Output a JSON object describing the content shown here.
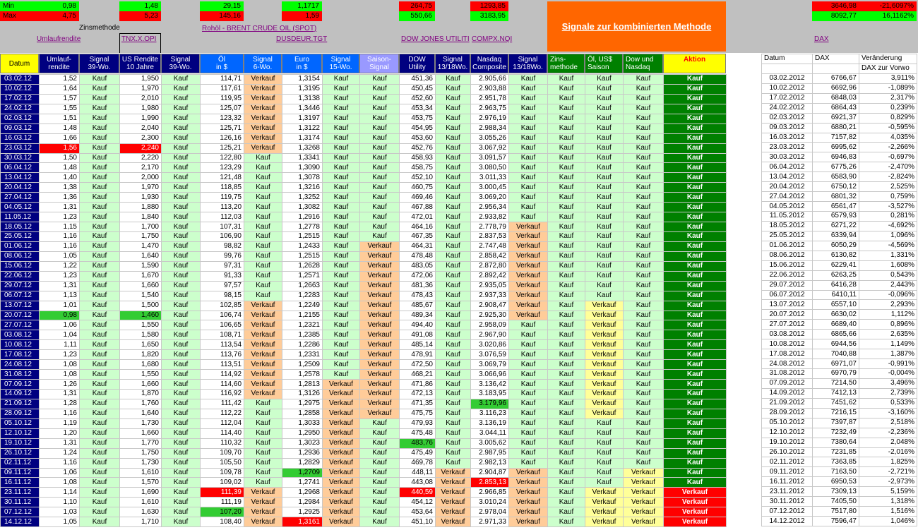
{
  "minmax": {
    "min_label": "Min",
    "max_label": "Max",
    "min": [
      "0,98",
      "1,48",
      "29,15",
      "1,1717",
      "264,75",
      "1293,85",
      "3646,98",
      "-21,6097%"
    ],
    "max": [
      "4,75",
      "5,23",
      "145,16",
      "1,59",
      "550,66",
      "3183,95",
      "8092,77",
      "16,1162%"
    ]
  },
  "zinsmethode": "Zinsmethode",
  "links": {
    "umlaufrendite": "Umlaufrendite",
    "tnx": "TNX.X.OPI",
    "brent": "Rohöl - BRENT CRUDE OIL (SPOT)",
    "dusdeur": "DUSDEUR.TGT",
    "dow": "DOW JONES UTILITI",
    "compx": "COMPX.NQI",
    "dax": "DAX"
  },
  "signal_title": "Signale zur kombinierten Methode",
  "headers": {
    "datum": "Datum",
    "umlauf": [
      "Umlauf-",
      "rendite"
    ],
    "sig39a": [
      "Signal",
      "39-Wo."
    ],
    "usrendite": [
      "US Rendite",
      "10 Jahre"
    ],
    "sig39b": [
      "Signal",
      "39-Wo."
    ],
    "oel": [
      "Öl",
      "in $"
    ],
    "sig6": [
      "Signal",
      "6-Wo."
    ],
    "euro": [
      "Euro",
      "in $"
    ],
    "sig15": [
      "Signal",
      "15-Wo."
    ],
    "saison": [
      "Saison-",
      "Signal"
    ],
    "dow": [
      "DOW",
      "Utility"
    ],
    "sig1318a": [
      "Signal",
      "13/18Wo."
    ],
    "nasdaq": [
      "Nasdaq",
      "Composite"
    ],
    "sig1318b": [
      "Signal",
      "13/18Wo."
    ],
    "zins": [
      "Zins-",
      "methode"
    ],
    "oelus": [
      "Öl, US$",
      "Saison"
    ],
    "downdq": [
      "Dow und",
      "Nasdaq"
    ],
    "aktion": "Aktion"
  },
  "dax_headers": {
    "datum": "Datum",
    "dax": "DAX",
    "veraenderung": "Veränderung",
    "zurvorwoche": "DAX zur Vorwo"
  },
  "colors": {
    "navy_header": "#000080",
    "blue_header": "#0066ff",
    "purple_header": "#9999ff",
    "green_header": "#008000",
    "yellow_header": "#ffff00",
    "signal_bg": "#ccffcc",
    "verkauf_bg": "#ffcc99",
    "verkauf_yellow_bg": "#ffff99",
    "kauf_action": "#008000",
    "verkauf_action": "#ff0000",
    "title_orange": "#ff6600"
  },
  "rows": [
    [
      "03.02.12",
      "1,52",
      "Kauf",
      "1,950",
      "Kauf",
      "114,71",
      "Verkauf",
      "1,3154",
      "Kauf",
      "Kauf",
      "451,36",
      "Kauf",
      "2.905,66",
      "Kauf",
      "Kauf",
      "Kauf",
      "Kauf",
      "Kauf"
    ],
    [
      "10.02.12",
      "1,64",
      "Kauf",
      "1,970",
      "Kauf",
      "117,61",
      "Verkauf",
      "1,3195",
      "Kauf",
      "Kauf",
      "450,45",
      "Kauf",
      "2.903,88",
      "Kauf",
      "Kauf",
      "Kauf",
      "Kauf",
      "Kauf"
    ],
    [
      "17.02.12",
      "1,57",
      "Kauf",
      "2,010",
      "Kauf",
      "119,95",
      "Verkauf",
      "1,3138",
      "Kauf",
      "Kauf",
      "452,60",
      "Kauf",
      "2.951,78",
      "Kauf",
      "Kauf",
      "Kauf",
      "Kauf",
      "Kauf"
    ],
    [
      "24.02.12",
      "1,55",
      "Kauf",
      "1,980",
      "Kauf",
      "125,07",
      "Verkauf",
      "1,3446",
      "Kauf",
      "Kauf",
      "453,34",
      "Kauf",
      "2.963,75",
      "Kauf",
      "Kauf",
      "Kauf",
      "Kauf",
      "Kauf"
    ],
    [
      "02.03.12",
      "1,51",
      "Kauf",
      "1,990",
      "Kauf",
      "123,32",
      "Verkauf",
      "1,3197",
      "Kauf",
      "Kauf",
      "453,75",
      "Kauf",
      "2.976,19",
      "Kauf",
      "Kauf",
      "Kauf",
      "Kauf",
      "Kauf"
    ],
    [
      "09.03.12",
      "1,48",
      "Kauf",
      "2,040",
      "Kauf",
      "125,71",
      "Verkauf",
      "1,3122",
      "Kauf",
      "Kauf",
      "454,95",
      "Kauf",
      "2.988,34",
      "Kauf",
      "Kauf",
      "Kauf",
      "Kauf",
      "Kauf"
    ],
    [
      "16.03.12",
      "1,66",
      "Kauf",
      "2,300",
      "Kauf",
      "126,16",
      "Verkauf",
      "1,3174",
      "Kauf",
      "Kauf",
      "453,60",
      "Kauf",
      "3.055,26",
      "Kauf",
      "Kauf",
      "Kauf",
      "Kauf",
      "Kauf"
    ],
    [
      "23.03.12",
      "1,56",
      "Kauf",
      "2,240",
      "Kauf",
      "125,21",
      "Verkauf",
      "1,3268",
      "Kauf",
      "Kauf",
      "452,76",
      "Kauf",
      "3.067,92",
      "Kauf",
      "Kauf",
      "Kauf",
      "Kauf",
      "Kauf"
    ],
    [
      "30.03.12",
      "1,50",
      "Kauf",
      "2,220",
      "Kauf",
      "122,80",
      "Kauf",
      "1,3341",
      "Kauf",
      "Kauf",
      "458,93",
      "Kauf",
      "3.091,57",
      "Kauf",
      "Kauf",
      "Kauf",
      "Kauf",
      "Kauf"
    ],
    [
      "06.04.12",
      "1,48",
      "Kauf",
      "2,170",
      "Kauf",
      "123,29",
      "Kauf",
      "1,3090",
      "Kauf",
      "Kauf",
      "458,75",
      "Kauf",
      "3.080,50",
      "Kauf",
      "Kauf",
      "Kauf",
      "Kauf",
      "Kauf"
    ],
    [
      "13.04.12",
      "1,40",
      "Kauf",
      "2,000",
      "Kauf",
      "121,48",
      "Kauf",
      "1,3078",
      "Kauf",
      "Kauf",
      "452,10",
      "Kauf",
      "3.011,33",
      "Kauf",
      "Kauf",
      "Kauf",
      "Kauf",
      "Kauf"
    ],
    [
      "20.04.12",
      "1,38",
      "Kauf",
      "1,970",
      "Kauf",
      "118,85",
      "Kauf",
      "1,3216",
      "Kauf",
      "Kauf",
      "460,75",
      "Kauf",
      "3.000,45",
      "Kauf",
      "Kauf",
      "Kauf",
      "Kauf",
      "Kauf"
    ],
    [
      "27.04.12",
      "1,36",
      "Kauf",
      "1,930",
      "Kauf",
      "119,75",
      "Kauf",
      "1,3252",
      "Kauf",
      "Kauf",
      "469,46",
      "Kauf",
      "3.069,20",
      "Kauf",
      "Kauf",
      "Kauf",
      "Kauf",
      "Kauf"
    ],
    [
      "04.05.12",
      "1,31",
      "Kauf",
      "1,880",
      "Kauf",
      "113,20",
      "Kauf",
      "1,3082",
      "Kauf",
      "Kauf",
      "467,88",
      "Kauf",
      "2.956,34",
      "Kauf",
      "Kauf",
      "Kauf",
      "Kauf",
      "Kauf"
    ],
    [
      "11.05.12",
      "1,23",
      "Kauf",
      "1,840",
      "Kauf",
      "112,03",
      "Kauf",
      "1,2916",
      "Kauf",
      "Kauf",
      "472,01",
      "Kauf",
      "2.933,82",
      "Kauf",
      "Kauf",
      "Kauf",
      "Kauf",
      "Kauf"
    ],
    [
      "18.05.12",
      "1,15",
      "Kauf",
      "1,700",
      "Kauf",
      "107,31",
      "Kauf",
      "1,2778",
      "Kauf",
      "Kauf",
      "464,16",
      "Kauf",
      "2.778,79",
      "Verkauf",
      "Kauf",
      "Kauf",
      "Kauf",
      "Kauf"
    ],
    [
      "25.05.12",
      "1,16",
      "Kauf",
      "1,750",
      "Kauf",
      "106,90",
      "Kauf",
      "1,2515",
      "Kauf",
      "Kauf",
      "467,35",
      "Kauf",
      "2.837,53",
      "Verkauf",
      "Kauf",
      "Kauf",
      "Kauf",
      "Kauf"
    ],
    [
      "01.06.12",
      "1,16",
      "Kauf",
      "1,470",
      "Kauf",
      "98,82",
      "Kauf",
      "1,2433",
      "Kauf",
      "Verkauf",
      "464,31",
      "Kauf",
      "2.747,48",
      "Verkauf",
      "Kauf",
      "Kauf",
      "Kauf",
      "Kauf"
    ],
    [
      "08.06.12",
      "1,05",
      "Kauf",
      "1,640",
      "Kauf",
      "99,76",
      "Kauf",
      "1,2515",
      "Kauf",
      "Verkauf",
      "478,48",
      "Kauf",
      "2.858,42",
      "Verkauf",
      "Kauf",
      "Kauf",
      "Kauf",
      "Kauf"
    ],
    [
      "15.06.12",
      "1,22",
      "Kauf",
      "1,590",
      "Kauf",
      "97,31",
      "Kauf",
      "1,2628",
      "Kauf",
      "Verkauf",
      "483,05",
      "Kauf",
      "2.872,80",
      "Verkauf",
      "Kauf",
      "Kauf",
      "Kauf",
      "Kauf"
    ],
    [
      "22.06.12",
      "1,23",
      "Kauf",
      "1,670",
      "Kauf",
      "91,33",
      "Kauf",
      "1,2571",
      "Kauf",
      "Verkauf",
      "472,06",
      "Kauf",
      "2.892,42",
      "Verkauf",
      "Kauf",
      "Kauf",
      "Kauf",
      "Kauf"
    ],
    [
      "29.07.12",
      "1,31",
      "Kauf",
      "1,660",
      "Kauf",
      "97,57",
      "Kauf",
      "1,2663",
      "Kauf",
      "Verkauf",
      "481,36",
      "Kauf",
      "2.935,05",
      "Verkauf",
      "Kauf",
      "Kauf",
      "Kauf",
      "Kauf"
    ],
    [
      "06.07.12",
      "1,13",
      "Kauf",
      "1,540",
      "Kauf",
      "98,15",
      "Kauf",
      "1,2283",
      "Kauf",
      "Verkauf",
      "478,43",
      "Kauf",
      "2.937,33",
      "Verkauf",
      "Kauf",
      "Kauf",
      "Kauf",
      "Kauf"
    ],
    [
      "13.07.12",
      "1,01",
      "Kauf",
      "1,500",
      "Kauf",
      "102,85",
      "Verkauf",
      "1,2249",
      "Kauf",
      "Verkauf",
      "485,67",
      "Kauf",
      "2.908,47",
      "Verkauf",
      "Kauf",
      "Verkauf",
      "Kauf",
      "Kauf"
    ],
    [
      "20.07.12",
      "0,98",
      "Kauf",
      "1,460",
      "Kauf",
      "106,74",
      "Verkauf",
      "1,2155",
      "Kauf",
      "Verkauf",
      "489,34",
      "Kauf",
      "2.925,30",
      "Verkauf",
      "Kauf",
      "Verkauf",
      "Kauf",
      "Kauf"
    ],
    [
      "27.07.12",
      "1,06",
      "Kauf",
      "1,550",
      "Kauf",
      "106,65",
      "Verkauf",
      "1,2321",
      "Kauf",
      "Verkauf",
      "494,40",
      "Kauf",
      "2.958,09",
      "Kauf",
      "Kauf",
      "Verkauf",
      "Kauf",
      "Kauf"
    ],
    [
      "03.08.12",
      "1,04",
      "Kauf",
      "1,580",
      "Kauf",
      "108,71",
      "Verkauf",
      "1,2385",
      "Kauf",
      "Verkauf",
      "491,08",
      "Kauf",
      "2.967,90",
      "Kauf",
      "Kauf",
      "Verkauf",
      "Kauf",
      "Kauf"
    ],
    [
      "10.08.12",
      "1,11",
      "Kauf",
      "1,650",
      "Kauf",
      "113,54",
      "Verkauf",
      "1,2286",
      "Kauf",
      "Verkauf",
      "485,14",
      "Kauf",
      "3.020,86",
      "Kauf",
      "Kauf",
      "Verkauf",
      "Kauf",
      "Kauf"
    ],
    [
      "17.08.12",
      "1,23",
      "Kauf",
      "1,820",
      "Kauf",
      "113,76",
      "Verkauf",
      "1,2331",
      "Kauf",
      "Verkauf",
      "478,91",
      "Kauf",
      "3.076,59",
      "Kauf",
      "Kauf",
      "Verkauf",
      "Kauf",
      "Kauf"
    ],
    [
      "24.08.12",
      "1,08",
      "Kauf",
      "1,680",
      "Kauf",
      "113,51",
      "Verkauf",
      "1,2509",
      "Kauf",
      "Verkauf",
      "472,50",
      "Kauf",
      "3.069,79",
      "Kauf",
      "Kauf",
      "Verkauf",
      "Kauf",
      "Kauf"
    ],
    [
      "31.08.12",
      "1,08",
      "Kauf",
      "1,550",
      "Kauf",
      "114,92",
      "Verkauf",
      "1,2578",
      "Kauf",
      "Verkauf",
      "468,21",
      "Kauf",
      "3.066,96",
      "Kauf",
      "Kauf",
      "Verkauf",
      "Kauf",
      "Kauf"
    ],
    [
      "07.09.12",
      "1,26",
      "Kauf",
      "1,660",
      "Kauf",
      "114,60",
      "Verkauf",
      "1,2813",
      "Verkauf",
      "Verkauf",
      "471,86",
      "Kauf",
      "3.136,42",
      "Kauf",
      "Kauf",
      "Verkauf",
      "Kauf",
      "Kauf"
    ],
    [
      "14.09.12",
      "1,31",
      "Kauf",
      "1,870",
      "Kauf",
      "116,92",
      "Verkauf",
      "1,3126",
      "Verkauf",
      "Verkauf",
      "472,13",
      "Kauf",
      "3.183,95",
      "Kauf",
      "Kauf",
      "Verkauf",
      "Kauf",
      "Kauf"
    ],
    [
      "21.09.12",
      "1,28",
      "Kauf",
      "1,760",
      "Kauf",
      "111,42",
      "Kauf",
      "1,2975",
      "Verkauf",
      "Verkauf",
      "471,35",
      "Kauf",
      "3.179,96",
      "Kauf",
      "Kauf",
      "Verkauf",
      "Kauf",
      "Kauf"
    ],
    [
      "28.09.12",
      "1,16",
      "Kauf",
      "1,640",
      "Kauf",
      "112,22",
      "Kauf",
      "1,2858",
      "Verkauf",
      "Verkauf",
      "475,75",
      "Kauf",
      "3.116,23",
      "Kauf",
      "Kauf",
      "Verkauf",
      "Kauf",
      "Kauf"
    ],
    [
      "05.10.12",
      "1,19",
      "Kauf",
      "1,730",
      "Kauf",
      "112,04",
      "Kauf",
      "1,3033",
      "Verkauf",
      "Kauf",
      "479,93",
      "Kauf",
      "3.136,19",
      "Kauf",
      "Kauf",
      "Kauf",
      "Kauf",
      "Kauf"
    ],
    [
      "12.10.12",
      "1,20",
      "Kauf",
      "1,660",
      "Kauf",
      "114,40",
      "Kauf",
      "1,2950",
      "Verkauf",
      "Kauf",
      "475,48",
      "Kauf",
      "3.044,11",
      "Kauf",
      "Kauf",
      "Kauf",
      "Kauf",
      "Kauf"
    ],
    [
      "19.10.12",
      "1,31",
      "Kauf",
      "1,770",
      "Kauf",
      "110,32",
      "Kauf",
      "1,3023",
      "Verkauf",
      "Kauf",
      "483,76",
      "Kauf",
      "3.005,62",
      "Kauf",
      "Kauf",
      "Kauf",
      "Kauf",
      "Kauf"
    ],
    [
      "26.10.12",
      "1,24",
      "Kauf",
      "1,750",
      "Kauf",
      "109,70",
      "Kauf",
      "1,2936",
      "Verkauf",
      "Kauf",
      "475,49",
      "Kauf",
      "2.987,95",
      "Kauf",
      "Kauf",
      "Kauf",
      "Kauf",
      "Kauf"
    ],
    [
      "02.11.12",
      "1,16",
      "Kauf",
      "1,730",
      "Kauf",
      "105,50",
      "Kauf",
      "1,2829",
      "Verkauf",
      "Kauf",
      "469,78",
      "Kauf",
      "2.982,13",
      "Kauf",
      "Kauf",
      "Kauf",
      "Kauf",
      "Kauf"
    ],
    [
      "09.11.12",
      "1,06",
      "Kauf",
      "1,610",
      "Kauf",
      "109,78",
      "Kauf",
      "1,2709",
      "Verkauf",
      "Kauf",
      "448,11",
      "Verkauf",
      "2.904,87",
      "Verkauf",
      "Kauf",
      "Kauf",
      "Verkauf",
      "Kauf"
    ],
    [
      "16.11.12",
      "1,08",
      "Kauf",
      "1,570",
      "Kauf",
      "109,02",
      "Kauf",
      "1,2741",
      "Verkauf",
      "Kauf",
      "443,08",
      "Verkauf",
      "2.853,13",
      "Verkauf",
      "Kauf",
      "Kauf",
      "Verkauf",
      "Kauf"
    ],
    [
      "23.11.12",
      "1,14",
      "Kauf",
      "1,690",
      "Kauf",
      "111,39",
      "Verkauf",
      "1,2968",
      "Verkauf",
      "Kauf",
      "440,59",
      "Verkauf",
      "2.966,85",
      "Verkauf",
      "Kauf",
      "Verkauf",
      "Verkauf",
      "Verkauf"
    ],
    [
      "30.11.12",
      "1,10",
      "Kauf",
      "1,610",
      "Kauf",
      "111,19",
      "Verkauf",
      "1,2984",
      "Verkauf",
      "Kauf",
      "454,12",
      "Verkauf",
      "3.010,24",
      "Verkauf",
      "Kauf",
      "Verkauf",
      "Verkauf",
      "Verkauf"
    ],
    [
      "07.12.12",
      "1,03",
      "Kauf",
      "1,630",
      "Kauf",
      "107,20",
      "Verkauf",
      "1,2925",
      "Verkauf",
      "Kauf",
      "453,64",
      "Verkauf",
      "2.978,04",
      "Verkauf",
      "Kauf",
      "Verkauf",
      "Verkauf",
      "Verkauf"
    ],
    [
      "14.12.12",
      "1,05",
      "Kauf",
      "1,710",
      "Kauf",
      "108,40",
      "Verkauf",
      "1,3161",
      "Verkauf",
      "Kauf",
      "451,10",
      "Verkauf",
      "2.971,33",
      "Verkauf",
      "Kauf",
      "Verkauf",
      "Verkauf",
      "Verkauf"
    ]
  ],
  "dax_rows": [
    [
      "03.02.2012",
      "6766,67",
      "3,911%"
    ],
    [
      "10.02.2012",
      "6692,96",
      "-1,089%"
    ],
    [
      "17.02.2012",
      "6848,03",
      "2,317%"
    ],
    [
      "24.02.2012",
      "6864,43",
      "0,239%"
    ],
    [
      "02.03.2012",
      "6921,37",
      "0,829%"
    ],
    [
      "09.03.2012",
      "6880,21",
      "-0,595%"
    ],
    [
      "16.03.2012",
      "7157,82",
      "4,035%"
    ],
    [
      "23.03.2012",
      "6995,62",
      "-2,266%"
    ],
    [
      "30.03.2012",
      "6946,83",
      "-0,697%"
    ],
    [
      "06.04.2012",
      "6775,26",
      "-2,470%"
    ],
    [
      "13.04.2012",
      "6583,90",
      "-2,824%"
    ],
    [
      "20.04.2012",
      "6750,12",
      "2,525%"
    ],
    [
      "27.04.2012",
      "6801,32",
      "0,759%"
    ],
    [
      "04.05.2012",
      "6561,47",
      "-3,527%"
    ],
    [
      "11.05.2012",
      "6579,93",
      "0,281%"
    ],
    [
      "18.05.2012",
      "6271,22",
      "-4,692%"
    ],
    [
      "25.05.2012",
      "6339,94",
      "1,096%"
    ],
    [
      "01.06.2012",
      "6050,29",
      "-4,569%"
    ],
    [
      "08.06.2012",
      "6130,82",
      "1,331%"
    ],
    [
      "15.06.2012",
      "6229,41",
      "1,608%"
    ],
    [
      "22.06.2012",
      "6263,25",
      "0,543%"
    ],
    [
      "29.07.2012",
      "6416,28",
      "2,443%"
    ],
    [
      "06.07.2012",
      "6410,11",
      "-0,096%"
    ],
    [
      "13.07.2012",
      "6557,10",
      "2,293%"
    ],
    [
      "20.07.2012",
      "6630,02",
      "1,112%"
    ],
    [
      "27.07.2012",
      "6689,40",
      "0,896%"
    ],
    [
      "03.08.2012",
      "6865,66",
      "2,635%"
    ],
    [
      "10.08.2012",
      "6944,56",
      "1,149%"
    ],
    [
      "17.08.2012",
      "7040,88",
      "1,387%"
    ],
    [
      "24.08.2012",
      "6971,07",
      "-0,991%"
    ],
    [
      "31.08.2012",
      "6970,79",
      "-0,004%"
    ],
    [
      "07.09.2012",
      "7214,50",
      "3,496%"
    ],
    [
      "14.09.2012",
      "7412,13",
      "2,739%"
    ],
    [
      "21.09.2012",
      "7451,62",
      "0,533%"
    ],
    [
      "28.09.2012",
      "7216,15",
      "-3,160%"
    ],
    [
      "05.10.2012",
      "7397,87",
      "2,518%"
    ],
    [
      "12.10.2012",
      "7232,49",
      "-2,236%"
    ],
    [
      "19.10.2012",
      "7380,64",
      "2,048%"
    ],
    [
      "26.10.2012",
      "7231,85",
      "-2,016%"
    ],
    [
      "02.11.2012",
      "7363,85",
      "1,825%"
    ],
    [
      "09.11.2012",
      "7163,50",
      "-2,721%"
    ],
    [
      "16.11.2012",
      "6950,53",
      "-2,973%"
    ],
    [
      "23.11.2012",
      "7309,13",
      "5,159%"
    ],
    [
      "30.11.2012",
      "7405,50",
      "1,318%"
    ],
    [
      "07.12.2012",
      "7517,80",
      "1,516%"
    ],
    [
      "14.12.2012",
      "7596,47",
      "1,046%"
    ]
  ]
}
